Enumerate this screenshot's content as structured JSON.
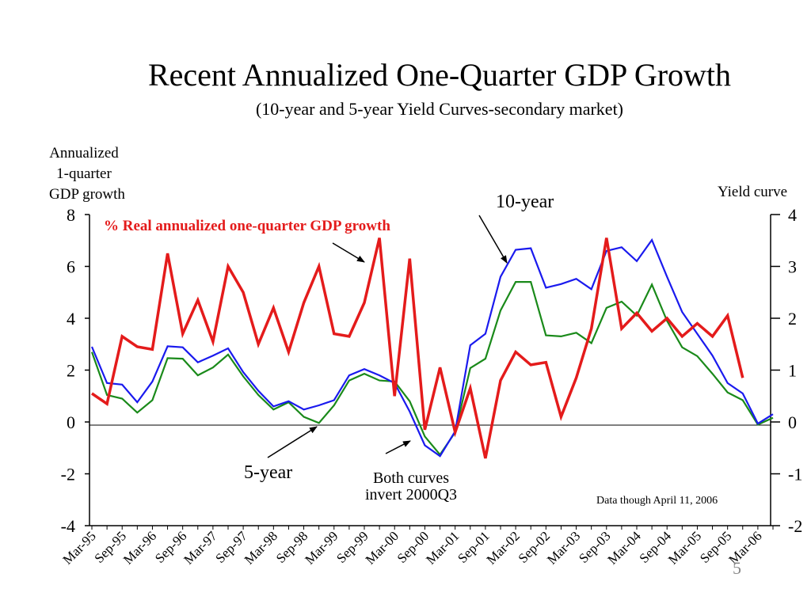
{
  "chart_data": {
    "type": "line",
    "title": "Recent Annualized One-Quarter GDP Growth",
    "subtitle": "(10-year and 5-year Yield Curves-secondary market)",
    "ylabel_left": [
      "Annualized",
      "1-quarter",
      "GDP growth"
    ],
    "ylabel_right": "Yield curve",
    "ylim_left": [
      -4,
      8
    ],
    "ylim_right": [
      -2,
      4
    ],
    "yticks_left": [
      "8",
      "6",
      "4",
      "2",
      "0",
      "-2",
      "-4"
    ],
    "yticks_right": [
      "4",
      "3",
      "2",
      "1",
      "0",
      "-1",
      "-2"
    ],
    "x_tick_labels": [
      "Mar-95",
      "Sep-95",
      "Mar-96",
      "Sep-96",
      "Mar-97",
      "Sep-97",
      "Mar-98",
      "Sep-98",
      "Mar-99",
      "Sep-99",
      "Mar-00",
      "Sep-00",
      "Mar-01",
      "Sep-01",
      "Mar-02",
      "Sep-02",
      "Mar-03",
      "Sep-03",
      "Mar-04",
      "Sep-04",
      "Mar-05",
      "Sep-05",
      "Mar-06"
    ],
    "x_start": "1995Q1",
    "x_frequency": "quarterly",
    "grid": false,
    "series": [
      {
        "name": "% Real annualized one-quarter GDP growth",
        "axis": "left",
        "color": "#e41b1b",
        "values": [
          1.1,
          0.7,
          3.3,
          2.9,
          2.8,
          6.5,
          3.4,
          4.7,
          3.1,
          6.0,
          5.0,
          3.0,
          4.4,
          2.7,
          4.6,
          6.0,
          3.4,
          3.3,
          4.6,
          7.1,
          1.0,
          6.3,
          -0.3,
          2.1,
          -0.4,
          1.3,
          -1.4,
          1.6,
          2.7,
          2.2,
          2.3,
          0.2,
          1.7,
          3.6,
          7.1,
          3.6,
          4.2,
          3.5,
          4.0,
          3.3,
          3.8,
          3.3,
          4.1,
          1.7
        ]
      },
      {
        "name": "10-year",
        "axis": "right",
        "color": "#1a1aee",
        "values": [
          1.45,
          0.75,
          0.72,
          0.38,
          0.78,
          1.46,
          1.44,
          1.15,
          1.28,
          1.42,
          0.96,
          0.6,
          0.3,
          0.4,
          0.24,
          0.32,
          0.42,
          0.9,
          1.02,
          0.9,
          0.75,
          0.2,
          -0.45,
          -0.66,
          -0.18,
          1.48,
          1.7,
          2.8,
          3.32,
          3.35,
          2.59,
          2.66,
          2.76,
          2.56,
          3.3,
          3.37,
          3.1,
          3.51,
          2.8,
          2.12,
          1.7,
          1.28,
          0.75,
          0.55,
          -0.03,
          0.15
        ]
      },
      {
        "name": "5-year",
        "axis": "right",
        "color": "#1a8a1a",
        "values": [
          1.35,
          0.52,
          0.45,
          0.18,
          0.42,
          1.23,
          1.22,
          0.9,
          1.05,
          1.3,
          0.88,
          0.52,
          0.24,
          0.38,
          0.1,
          -0.02,
          0.32,
          0.8,
          0.93,
          0.8,
          0.78,
          0.4,
          -0.28,
          -0.63,
          -0.2,
          1.04,
          1.22,
          2.15,
          2.7,
          2.7,
          1.67,
          1.65,
          1.72,
          1.52,
          2.2,
          2.32,
          2.05,
          2.65,
          1.95,
          1.44,
          1.27,
          0.93,
          0.57,
          0.42,
          -0.05,
          0.08
        ]
      }
    ],
    "annotations": {
      "gdp_label": "% Real annualized one-quarter GDP growth",
      "ten_year": "10-year",
      "five_year": "5-year",
      "invert_line1": "Both curves",
      "invert_line2": "invert 2000Q3",
      "data_note": "Data though April 11,  2006",
      "page_number": "5"
    },
    "colors": {
      "gdp": "#e41b1b",
      "ten_year": "#1a1aee",
      "five_year": "#1a8a1a",
      "axis": "#000000"
    }
  }
}
